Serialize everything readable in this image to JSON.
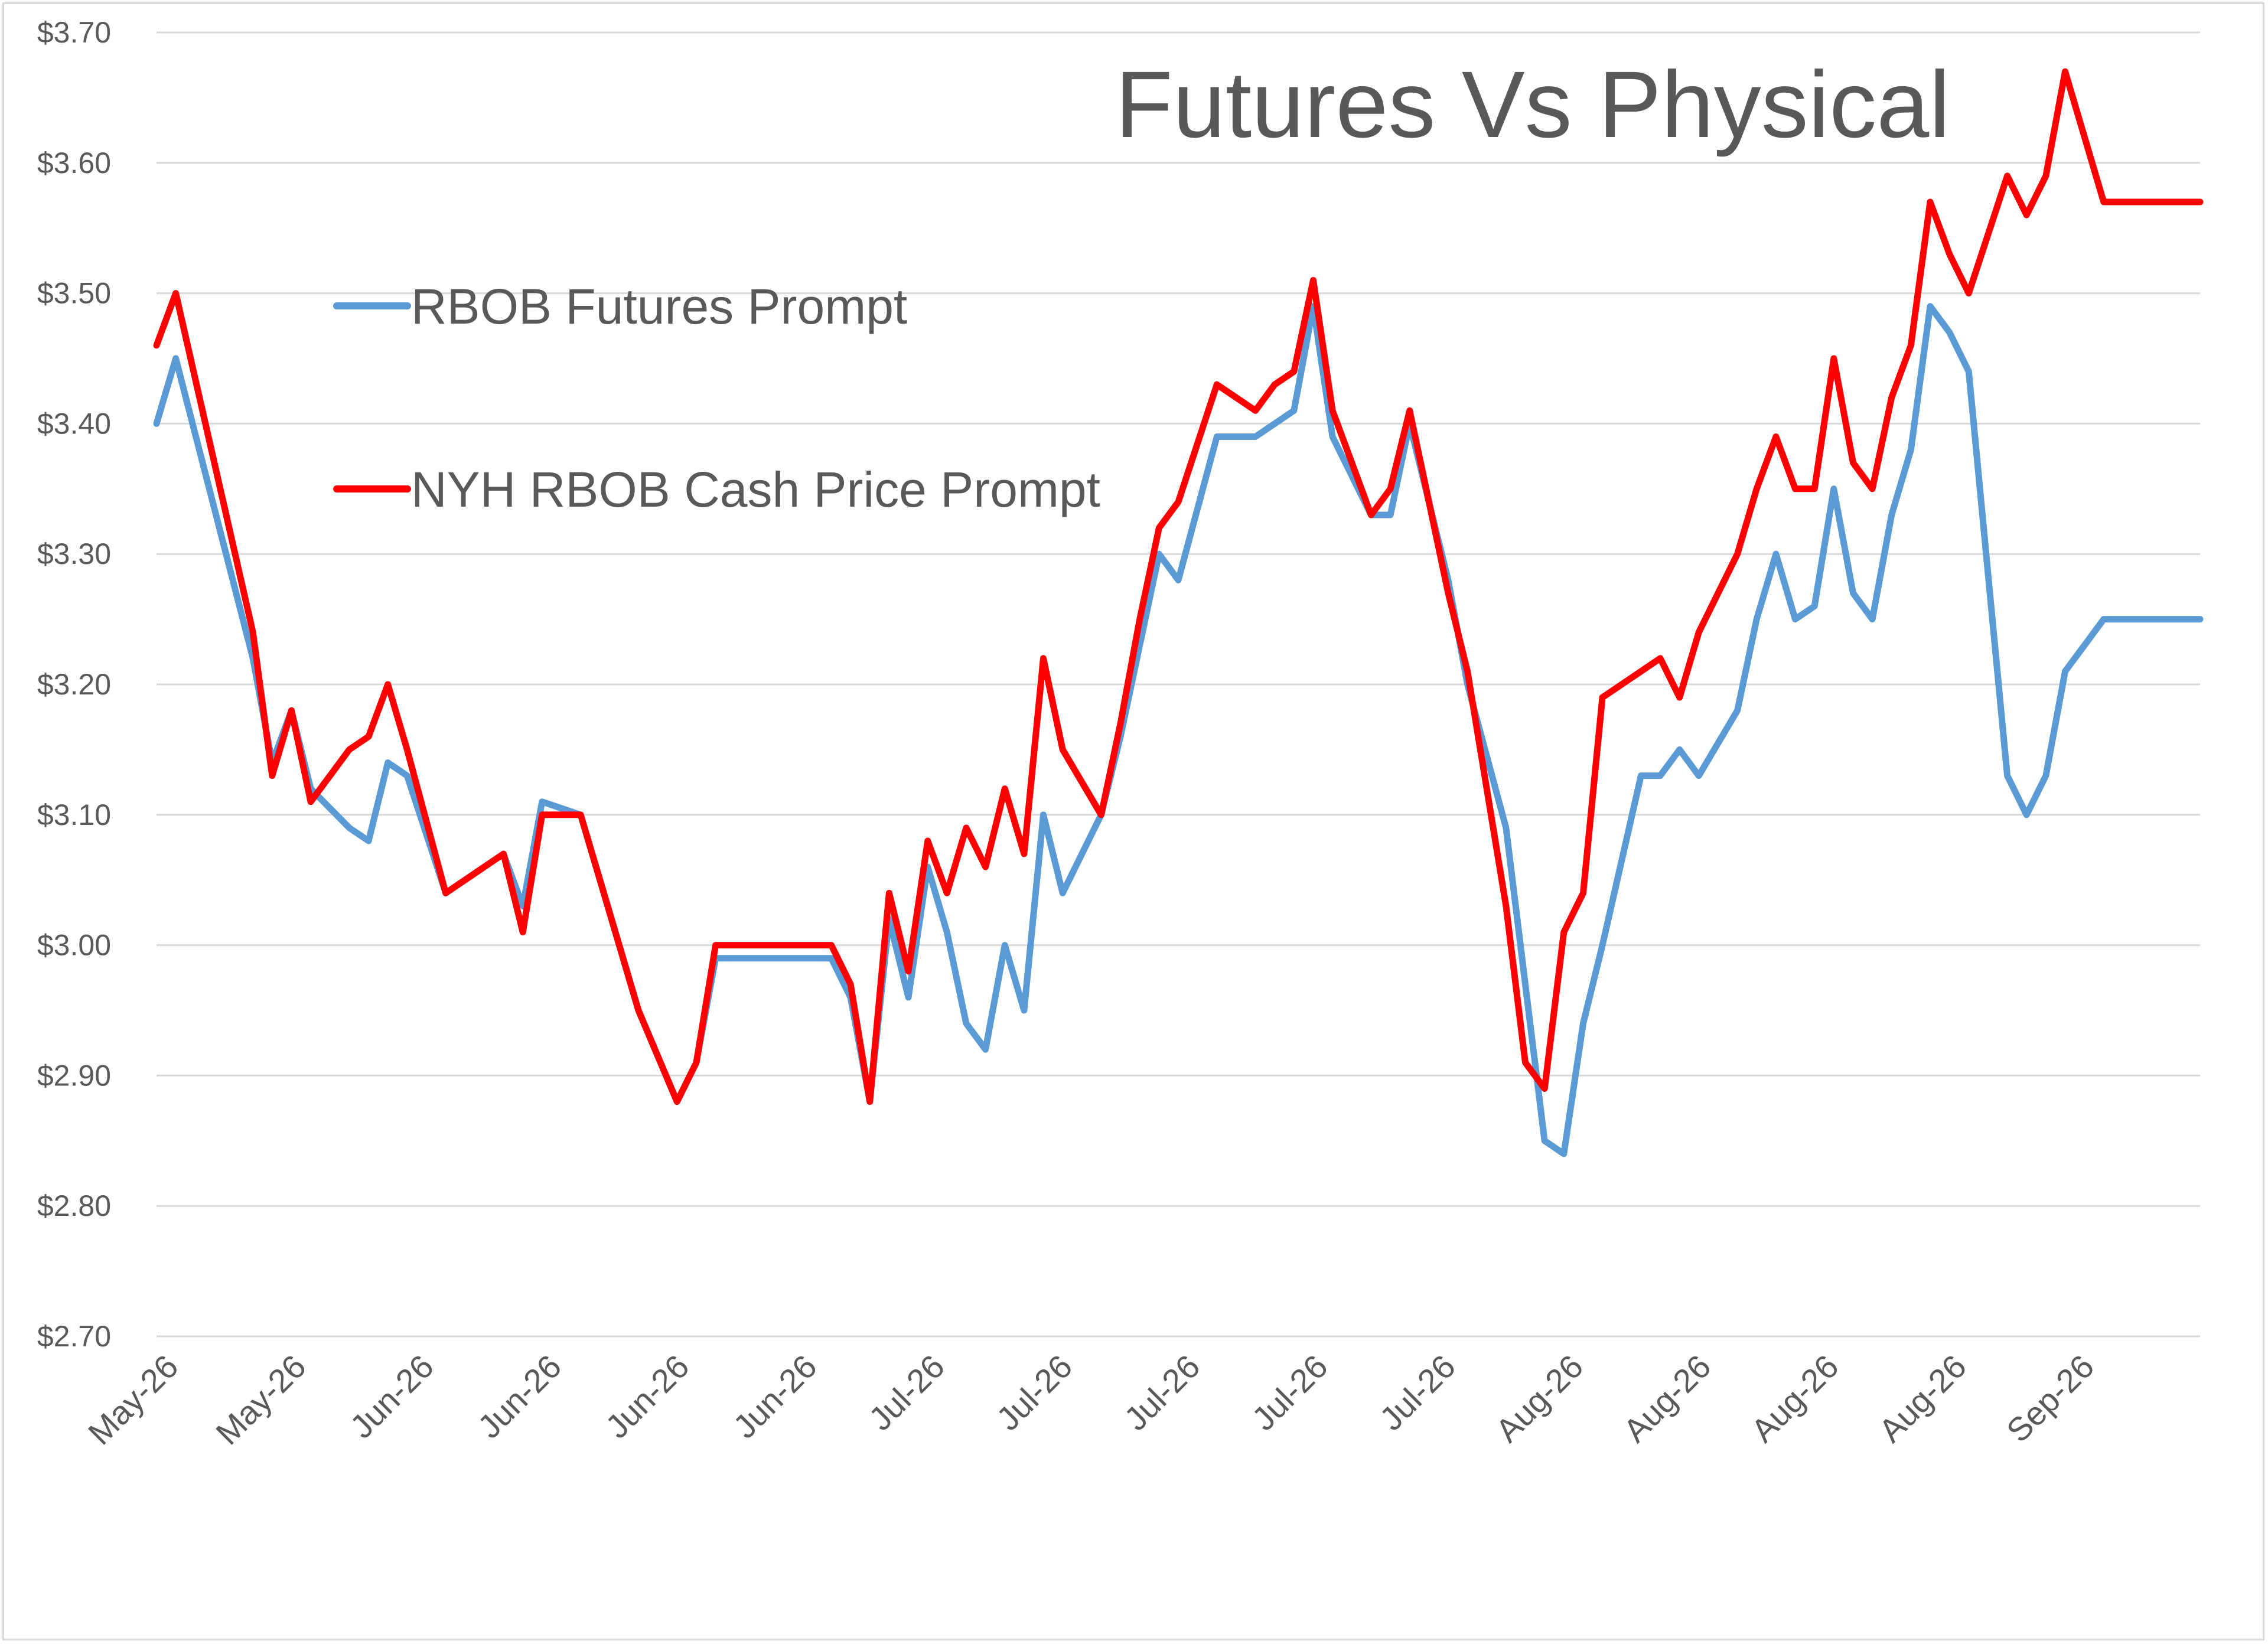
{
  "chart_data": {
    "type": "line",
    "title": "Futures Vs Physical",
    "xlabel": "",
    "ylabel": "",
    "ylim": [
      2.7,
      3.7
    ],
    "y_ticks": [
      "$2.70",
      "$2.80",
      "$2.90",
      "$3.00",
      "$3.10",
      "$3.20",
      "$3.30",
      "$3.40",
      "$3.50",
      "$3.60",
      "$3.70"
    ],
    "x_tick_labels": [
      "May-26",
      "May-26",
      "Jun-26",
      "Jun-26",
      "Jun-26",
      "Jun-26",
      "Jul-26",
      "Jul-26",
      "Jul-26",
      "Jul-26",
      "Jul-26",
      "Aug-26",
      "Aug-26",
      "Aug-26",
      "Aug-26",
      "Sep-26"
    ],
    "grid": true,
    "legend_position": "top-left",
    "colors": {
      "futures": "#5b9bd5",
      "cash": "#ff0000"
    },
    "x": [
      0,
      1,
      5,
      6,
      7,
      8,
      10,
      11,
      12,
      13,
      15,
      16,
      17,
      18,
      19,
      20,
      22,
      23,
      24,
      25,
      27,
      28,
      29,
      30,
      31,
      32,
      35,
      36,
      37,
      38,
      39,
      40,
      41,
      42,
      43,
      44,
      45,
      46,
      47,
      49,
      50,
      51,
      52,
      53,
      55,
      56,
      57,
      58,
      59,
      60,
      61,
      62,
      63,
      64,
      65,
      67,
      68,
      70,
      71,
      72,
      73,
      74,
      75,
      77,
      78,
      79,
      80,
      82,
      83,
      84,
      85,
      86,
      87,
      88,
      89,
      90,
      91,
      92,
      93,
      94,
      96,
      97,
      98,
      99,
      100,
      101,
      103,
      104,
      105,
      106
    ],
    "series": [
      {
        "name": "RBOB Futures Prompt",
        "values": [
          3.4,
          3.45,
          3.22,
          3.14,
          3.18,
          3.12,
          3.09,
          3.08,
          3.14,
          3.13,
          3.04,
          3.05,
          3.06,
          3.07,
          3.03,
          3.11,
          3.1,
          3.05,
          3.0,
          2.95,
          2.88,
          2.91,
          2.99,
          2.99,
          2.99,
          2.99,
          2.99,
          2.96,
          2.88,
          3.02,
          2.96,
          3.06,
          3.01,
          2.94,
          2.92,
          3.0,
          2.95,
          3.1,
          3.04,
          3.1,
          3.16,
          3.23,
          3.3,
          3.28,
          3.39,
          3.39,
          3.39,
          3.4,
          3.41,
          3.49,
          3.39,
          3.36,
          3.33,
          3.33,
          3.4,
          3.28,
          3.2,
          3.09,
          2.97,
          2.85,
          2.84,
          2.94,
          3.0,
          3.13,
          3.13,
          3.15,
          3.13,
          3.18,
          3.25,
          3.3,
          3.25,
          3.26,
          3.35,
          3.27,
          3.25,
          3.33,
          3.38,
          3.49,
          3.47,
          3.44,
          3.13,
          3.1,
          3.13,
          3.21,
          3.23,
          3.25,
          3.25,
          3.25,
          3.25,
          3.25
        ]
      },
      {
        "name": "NYH RBOB Cash Price Prompt",
        "values": [
          3.46,
          3.5,
          3.24,
          3.13,
          3.18,
          3.11,
          3.15,
          3.16,
          3.2,
          3.15,
          3.04,
          3.05,
          3.06,
          3.07,
          3.01,
          3.1,
          3.1,
          3.05,
          3.0,
          2.95,
          2.88,
          2.91,
          3.0,
          3.0,
          3.0,
          3.0,
          3.0,
          2.97,
          2.88,
          3.04,
          2.98,
          3.08,
          3.04,
          3.09,
          3.06,
          3.12,
          3.07,
          3.22,
          3.15,
          3.1,
          3.17,
          3.25,
          3.32,
          3.34,
          3.43,
          3.42,
          3.41,
          3.43,
          3.44,
          3.51,
          3.41,
          3.37,
          3.33,
          3.35,
          3.41,
          3.27,
          3.21,
          3.03,
          2.91,
          2.89,
          3.01,
          3.04,
          3.19,
          3.21,
          3.22,
          3.19,
          3.24,
          3.3,
          3.35,
          3.39,
          3.35,
          3.35,
          3.45,
          3.37,
          3.35,
          3.42,
          3.46,
          3.57,
          3.53,
          3.5,
          3.59,
          3.56,
          3.59,
          3.67,
          3.62,
          3.57,
          3.57,
          3.57,
          3.57,
          3.57
        ]
      }
    ]
  }
}
